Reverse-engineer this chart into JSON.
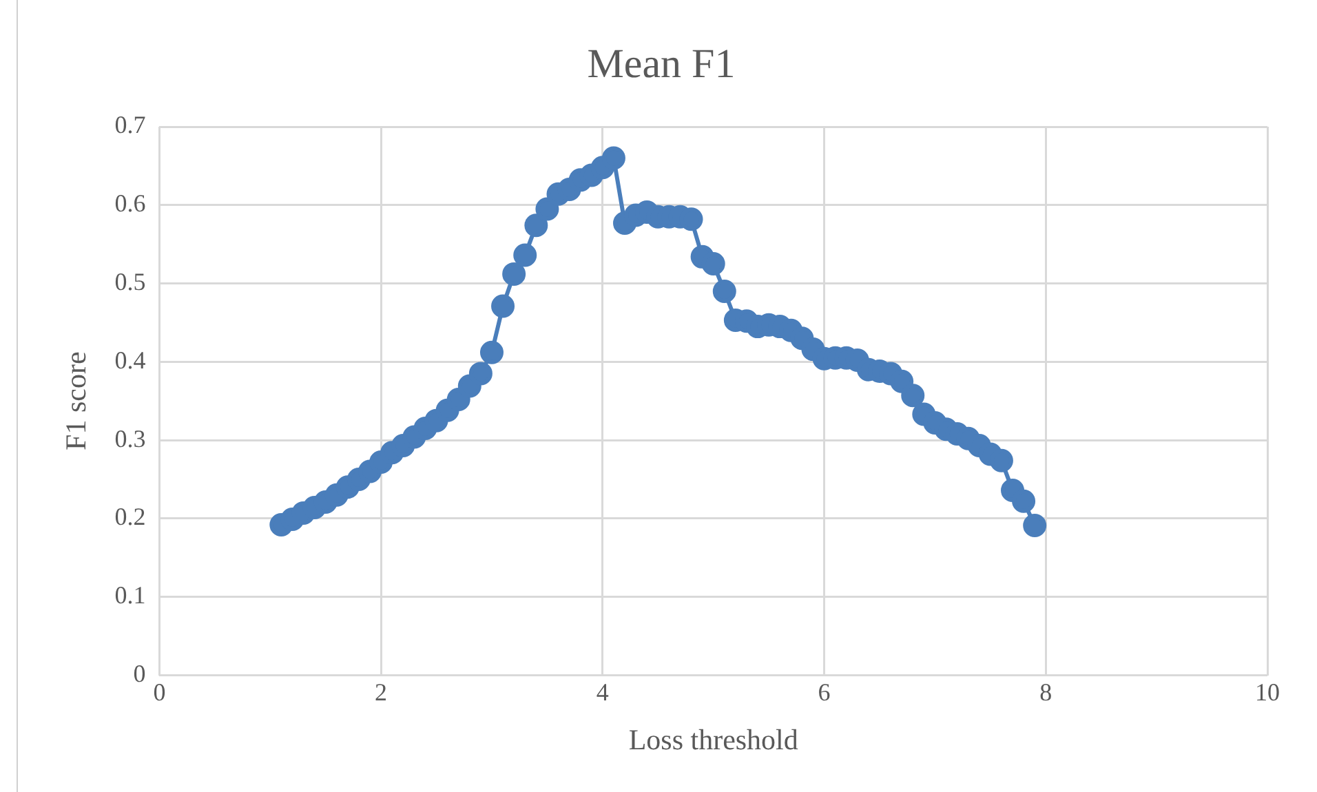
{
  "chart_data": {
    "type": "line",
    "title": "Mean F1",
    "xlabel": "Loss threshold",
    "ylabel": "F1 score",
    "x": [
      1.1,
      1.2,
      1.3,
      1.4,
      1.5,
      1.6,
      1.7,
      1.8,
      1.9,
      2.0,
      2.1,
      2.2,
      2.3,
      2.4,
      2.5,
      2.6,
      2.7,
      2.8,
      2.9,
      3.0,
      3.1,
      3.2,
      3.3,
      3.4,
      3.5,
      3.6,
      3.7,
      3.8,
      3.9,
      4.0,
      4.1,
      4.2,
      4.3,
      4.4,
      4.5,
      4.6,
      4.7,
      4.8,
      4.9,
      5.0,
      5.1,
      5.2,
      5.3,
      5.4,
      5.5,
      5.6,
      5.7,
      5.8,
      5.9,
      6.0,
      6.1,
      6.2,
      6.3,
      6.4,
      6.5,
      6.6,
      6.7,
      6.8,
      6.9,
      7.0,
      7.1,
      7.2,
      7.3,
      7.4,
      7.5,
      7.6,
      7.7,
      7.8,
      7.9
    ],
    "series": [
      {
        "color": "#4a7ebb",
        "values": [
          0.192,
          0.199,
          0.207,
          0.214,
          0.221,
          0.23,
          0.24,
          0.25,
          0.26,
          0.272,
          0.284,
          0.293,
          0.304,
          0.315,
          0.325,
          0.338,
          0.352,
          0.369,
          0.385,
          0.412,
          0.471,
          0.512,
          0.536,
          0.574,
          0.595,
          0.614,
          0.62,
          0.632,
          0.638,
          0.648,
          0.66,
          0.577,
          0.587,
          0.591,
          0.585,
          0.585,
          0.585,
          0.582,
          0.534,
          0.525,
          0.49,
          0.453,
          0.452,
          0.445,
          0.447,
          0.445,
          0.44,
          0.43,
          0.416,
          0.404,
          0.405,
          0.405,
          0.402,
          0.39,
          0.388,
          0.385,
          0.375,
          0.357,
          0.333,
          0.322,
          0.314,
          0.308,
          0.302,
          0.293,
          0.282,
          0.274,
          0.236,
          0.222,
          0.191
        ]
      }
    ],
    "xlim": [
      0,
      10
    ],
    "xticks": [
      0,
      2,
      4,
      6,
      8,
      10
    ],
    "ylim": [
      0,
      0.7
    ],
    "yticks": [
      0,
      0.1,
      0.2,
      0.3,
      0.4,
      0.5,
      0.6,
      0.7
    ],
    "grid": true,
    "legend": false,
    "marker": "circle",
    "line_style": "solid"
  }
}
